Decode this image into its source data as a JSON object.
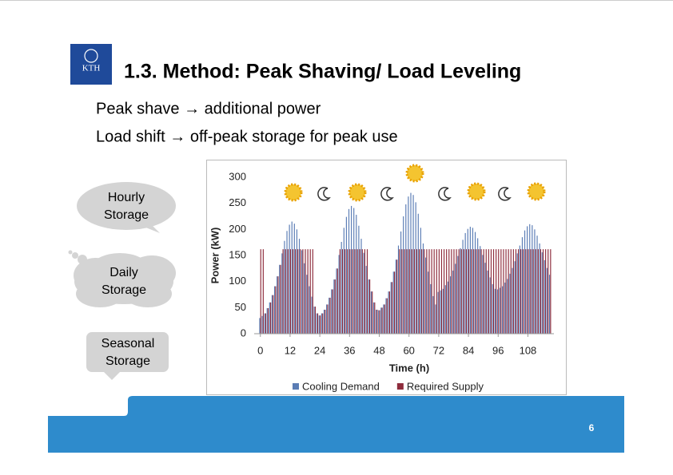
{
  "header": {
    "logo": "KTH",
    "title": "1.3. Method: Peak Shaving/ Load Leveling"
  },
  "bullets": [
    "Peak shave → additional power",
    "Load shift → off-peak storage for peak use"
  ],
  "storage_bubbles": [
    [
      "Hourly",
      "Storage"
    ],
    [
      "Daily",
      "Storage"
    ],
    [
      "Seasonal",
      "Storage"
    ]
  ],
  "page_number": "6",
  "chart_data": {
    "type": "bar",
    "x_label": "Time (h)",
    "y_label": "Power (kW)",
    "x": [
      0,
      1,
      2,
      3,
      4,
      5,
      6,
      7,
      8,
      9,
      10,
      11,
      12,
      13,
      14,
      15,
      16,
      17,
      18,
      19,
      20,
      21,
      22,
      23,
      24,
      25,
      26,
      27,
      28,
      29,
      30,
      31,
      32,
      33,
      34,
      35,
      36,
      37,
      38,
      39,
      40,
      41,
      42,
      43,
      44,
      45,
      46,
      47,
      48,
      49,
      50,
      51,
      52,
      53,
      54,
      55,
      56,
      57,
      58,
      59,
      60,
      61,
      62,
      63,
      64,
      65,
      66,
      67,
      68,
      69,
      70,
      71,
      72,
      73,
      74,
      75,
      76,
      77,
      78,
      79,
      80,
      81,
      82,
      83,
      84,
      85,
      86,
      87,
      88,
      89,
      90,
      91,
      92,
      93,
      94,
      95,
      96,
      97,
      98,
      99,
      100,
      101,
      102,
      103,
      104,
      105,
      106,
      107,
      108,
      109,
      110,
      111,
      112,
      113,
      114,
      115,
      116,
      117
    ],
    "series": [
      {
        "name": "Cooling Demand",
        "color": "#5b7db5",
        "values": [
          30,
          34,
          39,
          49,
          60,
          74,
          91,
          110,
          132,
          154,
          178,
          197,
          209,
          215,
          211,
          200,
          182,
          160,
          135,
          113,
          91,
          71,
          52,
          39,
          35,
          39,
          46,
          56,
          69,
          85,
          104,
          125,
          151,
          176,
          203,
          224,
          239,
          245,
          241,
          228,
          207,
          182,
          155,
          130,
          104,
          81,
          60,
          46,
          45,
          50,
          56,
          68,
          81,
          99,
          119,
          142,
          169,
          196,
          225,
          248,
          263,
          270,
          266,
          252,
          230,
          203,
          173,
          146,
          119,
          95,
          72,
          56,
          80,
          83,
          86,
          93,
          100,
          110,
          121,
          134,
          149,
          164,
          180,
          193,
          201,
          205,
          203,
          195,
          183,
          168,
          151,
          136,
          121,
          108,
          95,
          86,
          85,
          88,
          91,
          98,
          105,
          115,
          126,
          139,
          154,
          169,
          185,
          198,
          206,
          210,
          208,
          200,
          188,
          173,
          156,
          141,
          126,
          113
        ]
      },
      {
        "name": "Required Supply",
        "color": "#8e2c3c",
        "values": [
          162,
          162,
          39,
          49,
          60,
          74,
          91,
          110,
          132,
          162,
          162,
          162,
          162,
          162,
          162,
          162,
          162,
          162,
          162,
          162,
          162,
          162,
          52,
          39,
          35,
          39,
          46,
          56,
          69,
          85,
          104,
          125,
          162,
          162,
          162,
          162,
          162,
          162,
          162,
          162,
          162,
          162,
          162,
          162,
          104,
          81,
          60,
          46,
          45,
          50,
          56,
          68,
          81,
          99,
          119,
          142,
          162,
          162,
          162,
          162,
          162,
          162,
          162,
          162,
          162,
          162,
          162,
          162,
          162,
          162,
          162,
          162,
          162,
          162,
          162,
          162,
          162,
          162,
          162,
          162,
          162,
          162,
          162,
          162,
          162,
          162,
          162,
          162,
          162,
          162,
          162,
          162,
          162,
          162,
          162,
          162,
          162,
          162,
          162,
          162,
          162,
          162,
          162,
          162,
          162,
          162,
          162,
          162,
          162,
          162,
          162,
          162,
          162,
          162,
          162,
          162,
          162,
          162
        ]
      }
    ],
    "xlim": [
      -2.5,
      118.5
    ],
    "xticks": [
      0,
      12,
      24,
      36,
      48,
      60,
      72,
      84,
      96,
      108
    ],
    "ylim": [
      0,
      300
    ],
    "yticks": [
      0,
      50,
      100,
      150,
      200,
      250,
      300
    ],
    "grid": false,
    "legend": "bottom"
  }
}
